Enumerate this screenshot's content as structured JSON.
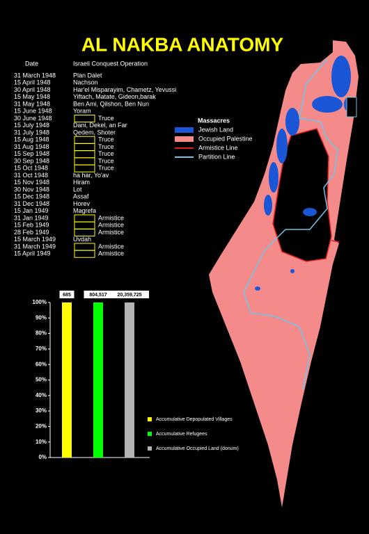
{
  "title": "AL NAKBA ANATOMY",
  "table": {
    "headers": [
      "Date",
      "Israeli Conquest Operation"
    ],
    "rows": [
      {
        "date": "31 March 1948",
        "operation": "Plan Dalet"
      },
      {
        "date": "15 April 1948",
        "operation": "Nachson"
      },
      {
        "date": "30 April 1948",
        "operation": "Har'el Misparayim, Chametz, Yevussi"
      },
      {
        "date": "15 May 1948",
        "operation": "Yiftach, Matate, Gideon,barak"
      },
      {
        "date": "31 May 1948",
        "operation": "Ben Ami, Qilshon, Ben Nun"
      },
      {
        "date": "15 June 1948",
        "operation": "Yoram"
      },
      {
        "date": "30 June 1948",
        "status": "Truce"
      },
      {
        "date": "15 July 1948",
        "operation": "Dani, Dekel, an Far"
      },
      {
        "date": "31 July 1948",
        "operation": "Qedem, Shoter"
      },
      {
        "date": "15 Aug 1948",
        "status": "Truce"
      },
      {
        "date": "31 Aug 1948",
        "status": "Truce"
      },
      {
        "date": "15 Sep 1948",
        "status": "Truce"
      },
      {
        "date": "30 Sep 1948",
        "status": "Truce"
      },
      {
        "date": "15 Oct 1948",
        "status": "Truce"
      },
      {
        "date": "31 Oct 1948",
        "operation": "ha har, Yo'av"
      },
      {
        "date": "15 Nov 1948",
        "operation": "Hiram"
      },
      {
        "date": "30 Nov 1948",
        "operation": "Lot"
      },
      {
        "date": "15 Dec 1948",
        "operation": "Assaf"
      },
      {
        "date": "31 Dec 1948",
        "operation": "Horev"
      },
      {
        "date": "15 Jan 1949",
        "operation": "Magrefa"
      },
      {
        "date": "31 Jan 1949",
        "status": "Armistice"
      },
      {
        "date": "15 Feb 1949",
        "status": "Armistice"
      },
      {
        "date": "28 Feb 1949",
        "status": "Armistice"
      },
      {
        "date": "15 March 1949",
        "operation": "Uvdah"
      },
      {
        "date": "31 March 1949",
        "status": "Armistice"
      },
      {
        "date": "15 April 1949",
        "status": "Armistice"
      }
    ]
  },
  "map_legend": {
    "title": "Massacres",
    "items": [
      {
        "label": "Jewish Land",
        "color": "#1a56d6"
      },
      {
        "label": "Occupied Palestine",
        "color": "#f48a8a"
      },
      {
        "label": "Armistice Line",
        "color": "#e0201a"
      },
      {
        "label": "Partition Line",
        "color": "#6ec6e8"
      }
    ]
  },
  "chart_data": {
    "type": "bar",
    "series": [
      {
        "name": "Accumulative Depopulated Villages",
        "color": "#ffff00",
        "values": [
          100
        ]
      },
      {
        "name": "Accumulative Refugees",
        "color": "#00ff00",
        "values": [
          100
        ]
      },
      {
        "name": "Accumulative Occupied Land (donum)",
        "color": "#b4b4b4",
        "values": [
          100
        ]
      }
    ],
    "totals": [
      "685",
      "804,517",
      "20,359,725"
    ],
    "ylim": [
      0,
      100
    ],
    "yticks": [
      {
        "value": 0,
        "label": "0%"
      },
      {
        "value": 10,
        "label": "10%"
      },
      {
        "value": 20,
        "label": "20%"
      },
      {
        "value": 30,
        "label": "30%"
      },
      {
        "value": 40,
        "label": "40%"
      },
      {
        "value": 50,
        "label": "50%"
      },
      {
        "value": 60,
        "label": "60%"
      },
      {
        "value": 70,
        "label": "70%"
      },
      {
        "value": 80,
        "label": "80%"
      },
      {
        "value": 90,
        "label": "90%"
      },
      {
        "value": 100,
        "label": "100%"
      }
    ]
  }
}
